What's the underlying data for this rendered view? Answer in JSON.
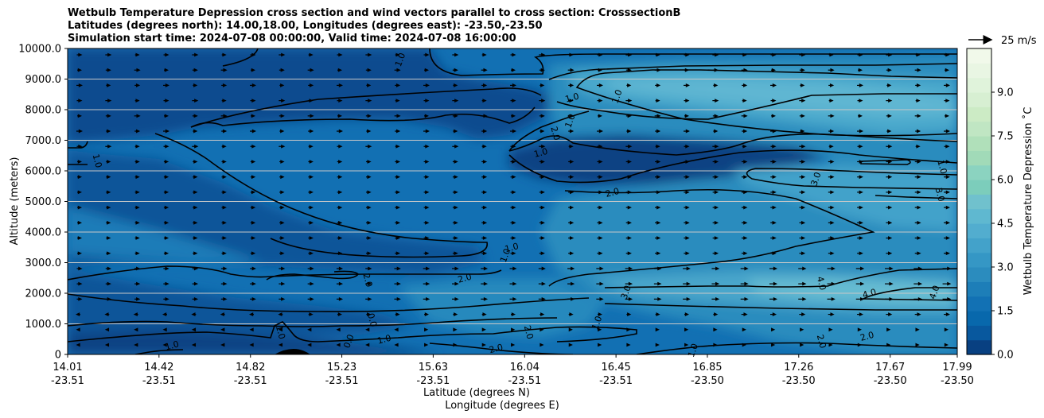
{
  "chart_data": {
    "type": "contour",
    "title_lines": [
      "Wetbulb Temperature Depression cross section and wind vectors parallel to cross section: CrosssectionB",
      "Latitudes (degrees north): 14.00,18.00, Longitudes (degrees east): -23.50,-23.50",
      "Simulation start time: 2024-07-08 00:00:00, Valid time: 2024-07-08 16:00:00"
    ],
    "ylabel": "Altitude (meters)",
    "xlabel_lat": "Latitude (degrees N)",
    "xlabel_lon": "Longitude (degrees E)",
    "ylim": [
      0,
      10000
    ],
    "yticks": [
      "0",
      "1000.0",
      "2000.0",
      "3000.0",
      "4000.0",
      "5000.0",
      "6000.0",
      "7000.0",
      "8000.0",
      "9000.0",
      "10000.0"
    ],
    "ytick_values": [
      0,
      1000,
      2000,
      3000,
      4000,
      5000,
      6000,
      7000,
      8000,
      9000,
      10000
    ],
    "xticks": [
      {
        "lat": "14.01",
        "lon": "-23.51",
        "frac": 0.0
      },
      {
        "lat": "14.42",
        "lon": "-23.51",
        "frac": 0.1027
      },
      {
        "lat": "14.82",
        "lon": "-23.51",
        "frac": 0.2055
      },
      {
        "lat": "15.23",
        "lon": "-23.51",
        "frac": 0.3082
      },
      {
        "lat": "15.63",
        "lon": "-23.51",
        "frac": 0.4109
      },
      {
        "lat": "16.04",
        "lon": "-23.51",
        "frac": 0.5137
      },
      {
        "lat": "16.45",
        "lon": "-23.51",
        "frac": 0.6164
      },
      {
        "lat": "16.85",
        "lon": "-23.50",
        "frac": 0.7191
      },
      {
        "lat": "17.26",
        "lon": "-23.50",
        "frac": 0.8218
      },
      {
        "lat": "17.67",
        "lon": "-23.50",
        "frac": 0.9246
      },
      {
        "lat": "17.99",
        "lon": "-23.50",
        "frac": 1.0
      }
    ],
    "colorbar": {
      "label": "Wetbulb Temperature Depression ˚C",
      "min": 0,
      "max": 10.5,
      "levels": [
        0,
        0.5,
        1,
        1.5,
        2,
        2.5,
        3,
        3.5,
        4,
        4.5,
        5,
        5.5,
        6,
        6.5,
        7,
        7.5,
        8,
        8.5,
        9,
        9.5,
        10,
        10.5
      ],
      "colors": [
        "#084081",
        "#08589e",
        "#0868ac",
        "#1271b4",
        "#1d7eb8",
        "#2b8cbe",
        "#3597c5",
        "#43a2ca",
        "#52adcf",
        "#5fb8d0",
        "#70c1cd",
        "#7ccdbb",
        "#8bd3c0",
        "#a1dab8",
        "#b0e0ba",
        "#c0e6c3",
        "#ccebc5",
        "#d7efd2",
        "#e0f3db",
        "#e9f6e3",
        "#f1f9ea",
        "#f7fcf0"
      ],
      "tick_labels": [
        "0.0",
        "1.5",
        "3.0",
        "4.5",
        "6.0",
        "7.5",
        "9.0"
      ],
      "tick_values": [
        0,
        1.5,
        3,
        4.5,
        6,
        7.5,
        9
      ]
    },
    "quiver_key": "25 m/s",
    "contour_labels": [
      {
        "text": "1.0",
        "lat": 15.51,
        "alt": 9600
      },
      {
        "text": "1.0",
        "lat": 14.13,
        "alt": 6300
      },
      {
        "text": "1.0",
        "lat": 16.27,
        "alt": 8300
      },
      {
        "text": "1.0",
        "lat": 16.27,
        "alt": 7600
      },
      {
        "text": "2.0",
        "lat": 16.18,
        "alt": 7200
      },
      {
        "text": "1.0",
        "lat": 16.13,
        "alt": 6500
      },
      {
        "text": "1.0",
        "lat": 16.48,
        "alt": 8400
      },
      {
        "text": "1.0",
        "lat": 17.91,
        "alt": 6100
      },
      {
        "text": "2.0",
        "lat": 16.45,
        "alt": 5200
      },
      {
        "text": "3.0",
        "lat": 17.37,
        "alt": 5700
      },
      {
        "text": "3.0",
        "lat": 17.9,
        "alt": 5200
      },
      {
        "text": "1.0",
        "lat": 16.0,
        "alt": 3400
      },
      {
        "text": "1.0",
        "lat": 15.98,
        "alt": 3200
      },
      {
        "text": "2.0",
        "lat": 15.34,
        "alt": 2400
      },
      {
        "text": "2.0",
        "lat": 15.79,
        "alt": 2400
      },
      {
        "text": "3.0",
        "lat": 16.52,
        "alt": 2000
      },
      {
        "text": "4.0",
        "lat": 17.37,
        "alt": 2300
      },
      {
        "text": "4.0",
        "lat": 17.6,
        "alt": 1900
      },
      {
        "text": "4.0",
        "lat": 17.9,
        "alt": 2000
      },
      {
        "text": "0.0",
        "lat": 15.36,
        "alt": 1100
      },
      {
        "text": "1.0",
        "lat": 15.43,
        "alt": 400
      },
      {
        "text": "0.0",
        "lat": 15.28,
        "alt": 400
      },
      {
        "text": "1.0",
        "lat": 14.95,
        "alt": 700
      },
      {
        "text": "1.0",
        "lat": 14.48,
        "alt": 200
      },
      {
        "text": "1.0",
        "lat": 16.39,
        "alt": 1000
      },
      {
        "text": "2.0",
        "lat": 16.06,
        "alt": 700
      },
      {
        "text": "2.0",
        "lat": 15.93,
        "alt": 100
      },
      {
        "text": "1.0",
        "lat": 16.82,
        "alt": 100
      },
      {
        "text": "2.0",
        "lat": 17.37,
        "alt": 400
      },
      {
        "text": "2.0",
        "lat": 17.59,
        "alt": 500
      }
    ]
  }
}
